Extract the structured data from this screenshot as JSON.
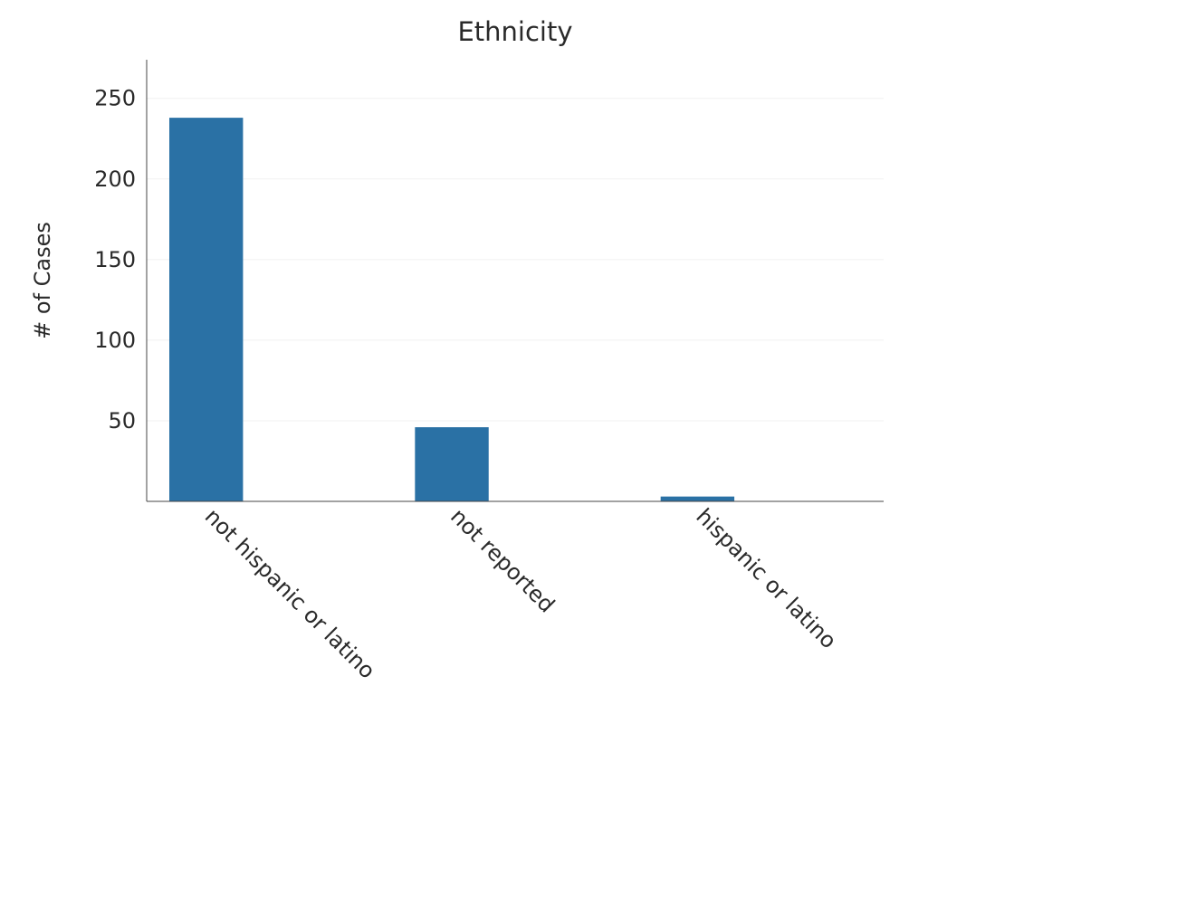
{
  "chart_data": {
    "type": "bar",
    "title": "Ethnicity",
    "xlabel": "",
    "ylabel": "# of Cases",
    "categories": [
      "not hispanic or latino",
      "not reported",
      "hispanic or latino"
    ],
    "values": [
      238,
      46,
      3
    ],
    "ylim": [
      0,
      274
    ],
    "yticks": [
      50,
      100,
      150,
      200,
      250
    ],
    "grid": true,
    "legend": "none",
    "bar_color": "#2a71a5"
  }
}
